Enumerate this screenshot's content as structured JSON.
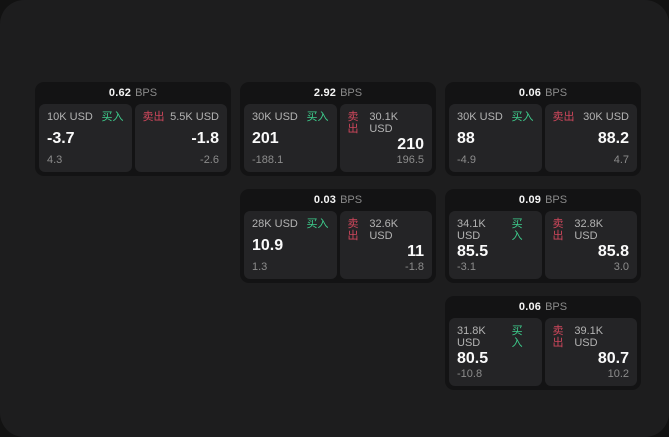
{
  "labels": {
    "bps_unit": "BPS",
    "buy": "买入",
    "sell": "卖出"
  },
  "colors": {
    "buy": "#3ecf8e",
    "sell": "#d0475c"
  },
  "cards": [
    {
      "bps": "0.62",
      "buy": {
        "amount": "10K USD",
        "price": "-3.7",
        "delta": "4.3"
      },
      "sell": {
        "amount": "5.5K USD",
        "price": "-1.8",
        "delta": "-2.6"
      }
    },
    {
      "bps": "2.92",
      "buy": {
        "amount": "30K USD",
        "price": "201",
        "delta": "-188.1"
      },
      "sell": {
        "amount": "30.1K USD",
        "price": "210",
        "delta": "196.5"
      }
    },
    {
      "bps": "0.06",
      "buy": {
        "amount": "30K USD",
        "price": "88",
        "delta": "-4.9"
      },
      "sell": {
        "amount": "30K USD",
        "price": "88.2",
        "delta": "4.7"
      }
    },
    {
      "bps": "0.03",
      "buy": {
        "amount": "28K USD",
        "price": "10.9",
        "delta": "1.3"
      },
      "sell": {
        "amount": "32.6K USD",
        "price": "11",
        "delta": "-1.8"
      }
    },
    {
      "bps": "0.09",
      "buy": {
        "amount": "34.1K USD",
        "price": "85.5",
        "delta": "-3.1"
      },
      "sell": {
        "amount": "32.8K USD",
        "price": "85.8",
        "delta": "3.0"
      }
    },
    {
      "bps": "0.06",
      "buy": {
        "amount": "31.8K USD",
        "price": "80.5",
        "delta": "-10.8"
      },
      "sell": {
        "amount": "39.1K USD",
        "price": "80.7",
        "delta": "10.2"
      }
    }
  ]
}
